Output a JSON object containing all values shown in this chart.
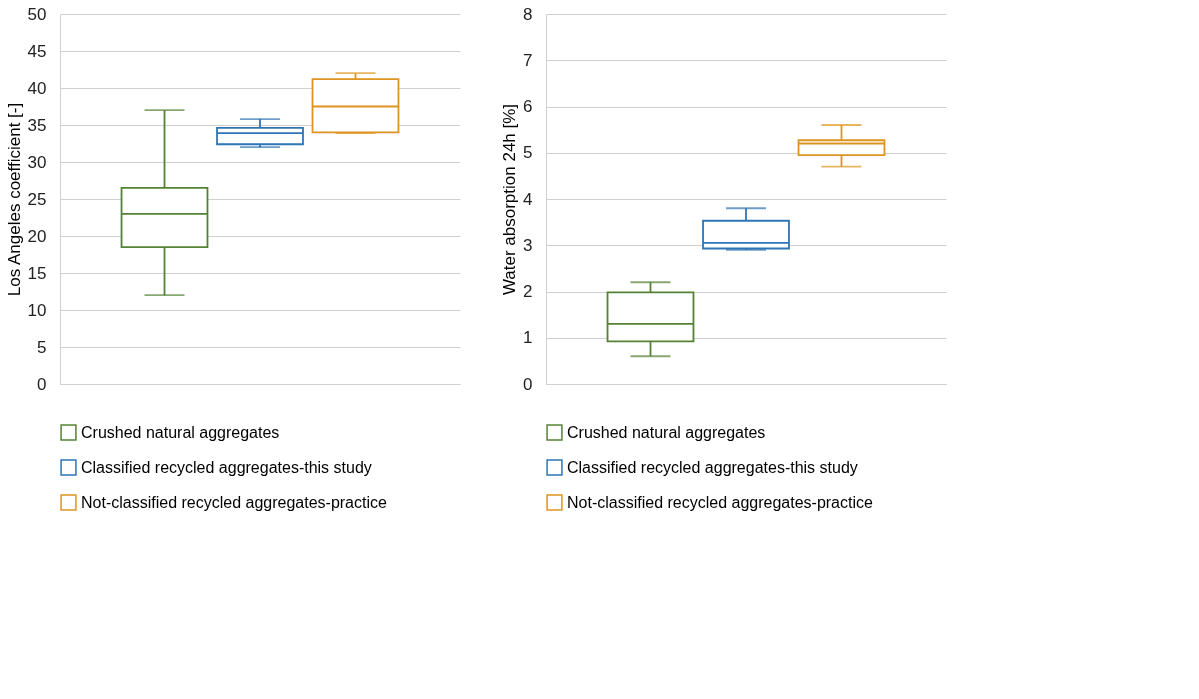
{
  "chart_data": [
    {
      "type": "box",
      "ylabel": "Los Angeles coefficient [-]",
      "categories": [
        null
      ],
      "ylim": [
        0,
        50
      ],
      "yticks": [
        0,
        5,
        10,
        15,
        20,
        25,
        30,
        35,
        40,
        45,
        50
      ],
      "grid": "y",
      "legend": "bottom",
      "tick_labels": "y",
      "series": [
        {
          "name": "Crushed natural aggregates",
          "color": "#548235",
          "boxes": [
            {
              "low": 12,
              "q1": 18.5,
              "median": 23,
              "q3": 26.5,
              "high": 37
            }
          ]
        },
        {
          "name": "Classified recycled aggregates-this study",
          "color": "#2e75b6",
          "boxes": [
            {
              "low": 32,
              "q1": 32.4,
              "median": 33.9,
              "q3": 34.6,
              "high": 35.8
            }
          ]
        },
        {
          "name": "Not-classified recycled aggregates-practice",
          "color": "#dd9420",
          "boxes": [
            {
              "low": 33.9,
              "q1": 34,
              "median": 37.5,
              "q3": 41.2,
              "high": 42
            }
          ]
        }
      ]
    },
    {
      "type": "box",
      "ylabel": "Water absorption 24h [%]",
      "categories": [
        null
      ],
      "ylim": [
        0,
        8
      ],
      "yticks": [
        0,
        1,
        2,
        3,
        4,
        5,
        6,
        7,
        8
      ],
      "grid": "y",
      "legend": "bottom",
      "tick_labels": "y",
      "series": [
        {
          "name": "Crushed natural aggregates",
          "color": "#548235",
          "boxes": [
            {
              "low": 0.6,
              "q1": 0.92,
              "median": 1.3,
              "q3": 1.98,
              "high": 2.2
            }
          ]
        },
        {
          "name": "Classified recycled aggregates-this study",
          "color": "#2e75b6",
          "boxes": [
            {
              "low": 2.9,
              "q1": 2.93,
              "median": 3.05,
              "q3": 3.53,
              "high": 3.8
            }
          ]
        },
        {
          "name": "Not-classified recycled aggregates-practice",
          "color": "#dd9420",
          "boxes": [
            {
              "low": 4.7,
              "q1": 4.95,
              "median": 5.2,
              "q3": 5.27,
              "high": 5.6
            }
          ]
        }
      ]
    }
  ]
}
